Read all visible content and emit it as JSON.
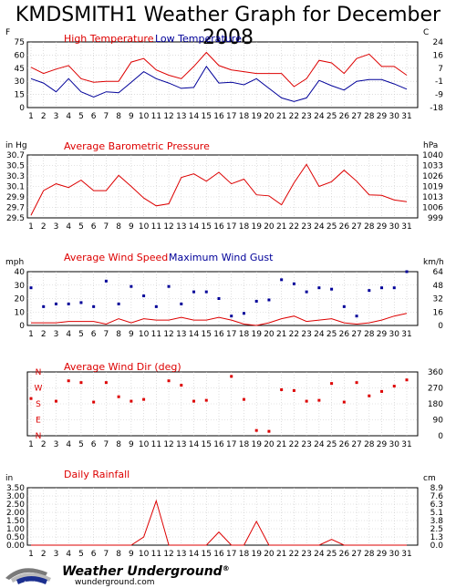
{
  "page": {
    "title": "KMDSMITH1 Weather Graph for December 2008"
  },
  "logo": {
    "name": "Weather Underground",
    "trademark": "®",
    "url": "wunderground.com"
  },
  "chart_data": [
    {
      "type": "line",
      "title": "",
      "left_unit": "F",
      "right_unit": "C",
      "x": [
        1,
        2,
        3,
        4,
        5,
        6,
        7,
        8,
        9,
        10,
        11,
        12,
        13,
        14,
        15,
        16,
        17,
        18,
        19,
        20,
        21,
        22,
        23,
        24,
        25,
        26,
        27,
        28,
        29,
        30,
        31
      ],
      "xlim": [
        1,
        31
      ],
      "ylim": [
        0,
        75
      ],
      "y_ticks": [
        0,
        15,
        30,
        45,
        60,
        75
      ],
      "y2_ticks": [
        "-18",
        "-9",
        "-1",
        "7",
        "16",
        "24"
      ],
      "grid": true,
      "series": [
        {
          "name": "High Temperature",
          "color": "#dd0000",
          "values": [
            46,
            39,
            44,
            48,
            33,
            29,
            30,
            30,
            52,
            56,
            43,
            37,
            33,
            47,
            63,
            48,
            43,
            41,
            39,
            39,
            39,
            24,
            33,
            54,
            51,
            39,
            56,
            61,
            47,
            47,
            37
          ]
        },
        {
          "name": "Low Temperature",
          "color": "#000099",
          "values": [
            33,
            28,
            18,
            33,
            18,
            12,
            18,
            17,
            29,
            41,
            33,
            28,
            22,
            23,
            47,
            28,
            29,
            26,
            33,
            22,
            11,
            7,
            11,
            31,
            25,
            20,
            30,
            32,
            32,
            27,
            21
          ]
        }
      ]
    },
    {
      "type": "line",
      "title": "Average Barometric Pressure",
      "left_unit": "in Hg",
      "right_unit": "hPa",
      "x": [
        1,
        2,
        3,
        4,
        5,
        6,
        7,
        8,
        9,
        10,
        11,
        12,
        13,
        14,
        15,
        16,
        17,
        18,
        19,
        20,
        21,
        22,
        23,
        24,
        25,
        26,
        27,
        28,
        29,
        30,
        31
      ],
      "xlim": [
        1,
        31
      ],
      "ylim": [
        29.5,
        30.7
      ],
      "y_ticks": [
        "29.5",
        "29.7",
        "29.9",
        "30.1",
        "30.3",
        "30.5",
        "30.7"
      ],
      "y2_ticks": [
        "999",
        "1006",
        "1013",
        "1019",
        "1026",
        "1033",
        "1040"
      ],
      "grid": true,
      "series": [
        {
          "name": "Average Barometric Pressure",
          "color": "#dd0000",
          "values": [
            29.55,
            30.02,
            30.15,
            30.08,
            30.22,
            30.02,
            30.02,
            30.31,
            30.1,
            29.88,
            29.73,
            29.77,
            30.27,
            30.34,
            30.2,
            30.37,
            30.15,
            30.24,
            29.94,
            29.92,
            29.75,
            30.17,
            30.52,
            30.1,
            30.19,
            30.41,
            30.2,
            29.94,
            29.93,
            29.84,
            29.81
          ]
        }
      ]
    },
    {
      "type": "scatter",
      "title": "",
      "left_unit": "mph",
      "right_unit": "km/h",
      "x": [
        1,
        2,
        3,
        4,
        5,
        6,
        7,
        8,
        9,
        10,
        11,
        12,
        13,
        14,
        15,
        16,
        17,
        18,
        19,
        20,
        21,
        22,
        23,
        24,
        25,
        26,
        27,
        28,
        29,
        30,
        31
      ],
      "xlim": [
        1,
        31
      ],
      "ylim": [
        0,
        40
      ],
      "y_ticks": [
        0,
        10,
        20,
        30,
        40
      ],
      "y2_ticks": [
        "0",
        "16",
        "32",
        "48",
        "64"
      ],
      "grid": true,
      "series": [
        {
          "name": "Average Wind Speed",
          "kind": "line",
          "color": "#dd0000",
          "values": [
            2,
            2,
            2,
            3,
            3,
            3,
            1,
            5,
            2,
            5,
            4,
            4,
            6,
            4,
            4,
            6,
            4,
            1,
            0,
            2,
            5,
            7,
            3,
            4,
            5,
            2,
            1,
            2,
            4,
            7,
            9
          ]
        },
        {
          "name": "Maximum Wind Gust",
          "kind": "points",
          "color": "#000099",
          "values": [
            28,
            14,
            16,
            16,
            17,
            14,
            33,
            16,
            29,
            22,
            14,
            29,
            16,
            25,
            25,
            20,
            7,
            9,
            18,
            19,
            34,
            31,
            25,
            28,
            27,
            14,
            7,
            26,
            28,
            28,
            40
          ]
        }
      ]
    },
    {
      "type": "scatter",
      "title": "Average Wind Dir (deg)",
      "left_labels": [
        "N",
        "W",
        "S",
        "E",
        "N"
      ],
      "x": [
        1,
        2,
        3,
        4,
        5,
        6,
        7,
        8,
        9,
        10,
        11,
        12,
        13,
        14,
        15,
        16,
        17,
        18,
        19,
        20,
        21,
        22,
        23,
        24,
        25,
        26,
        27,
        28,
        29,
        30,
        31
      ],
      "xlim": [
        1,
        31
      ],
      "ylim": [
        0,
        360
      ],
      "y2_ticks": [
        "0",
        "90",
        "180",
        "270",
        "360"
      ],
      "grid": true,
      "series": [
        {
          "name": "Average Wind Dir (deg)",
          "color": "#dd0000",
          "values": [
            210,
            null,
            195,
            310,
            300,
            190,
            300,
            220,
            195,
            205,
            null,
            310,
            285,
            195,
            200,
            null,
            335,
            205,
            30,
            25,
            260,
            255,
            195,
            200,
            295,
            190,
            300,
            225,
            250,
            280,
            315
          ]
        }
      ]
    },
    {
      "type": "line",
      "title": "Daily Rainfall",
      "left_unit": "in",
      "right_unit": "cm",
      "x": [
        1,
        2,
        3,
        4,
        5,
        6,
        7,
        8,
        9,
        10,
        11,
        12,
        13,
        14,
        15,
        16,
        17,
        18,
        19,
        20,
        21,
        22,
        23,
        24,
        25,
        26,
        27,
        28,
        29,
        30,
        31
      ],
      "xlim": [
        1,
        31
      ],
      "ylim": [
        0,
        3.5
      ],
      "y_ticks": [
        "0.00",
        "0.50",
        "1.00",
        "1.50",
        "2.00",
        "2.50",
        "3.00",
        "3.50"
      ],
      "y2_ticks": [
        "0.0",
        "1.3",
        "2.5",
        "3.8",
        "5.1",
        "6.3",
        "7.6",
        "8.9"
      ],
      "grid": true,
      "series": [
        {
          "name": "Daily Rainfall",
          "color": "#dd0000",
          "values": [
            0,
            0,
            0,
            0,
            0,
            0,
            0,
            0,
            0,
            0.5,
            2.7,
            0,
            0,
            0,
            0,
            0.8,
            0,
            0,
            1.45,
            0,
            0,
            0,
            0,
            0,
            0.35,
            0,
            0,
            0,
            0,
            0,
            0
          ]
        }
      ]
    }
  ]
}
